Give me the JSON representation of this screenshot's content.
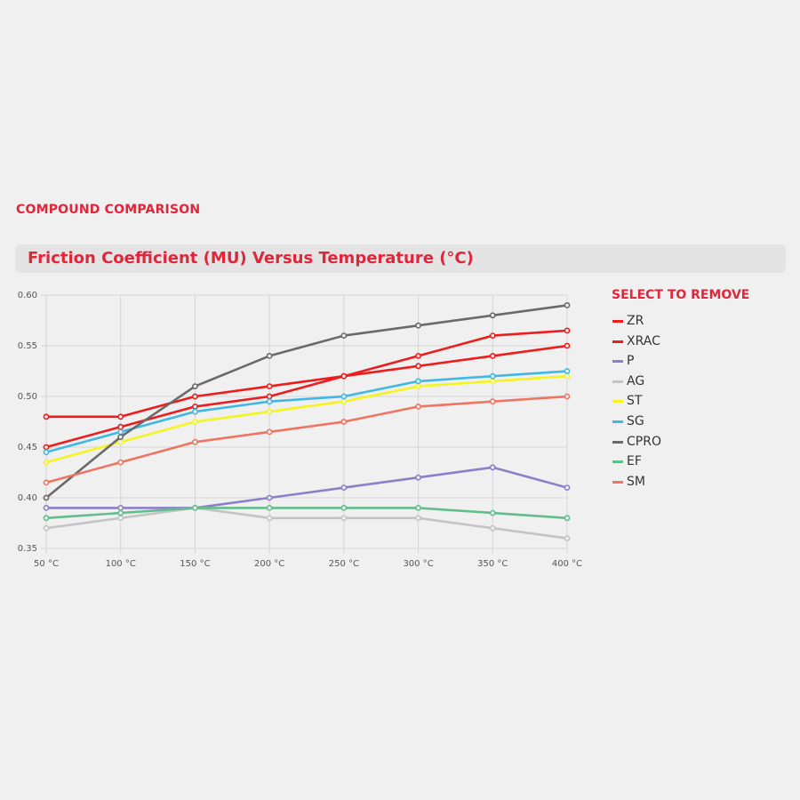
{
  "header": {
    "section_label": "COMPOUND COMPARISON",
    "chart_title": "Friction Coefficient (MU) Versus Temperature (°C)"
  },
  "legend": {
    "heading": "SELECT TO REMOVE"
  },
  "chart_data": {
    "type": "line",
    "title": "Friction Coefficient (MU) Versus Temperature (°C)",
    "xlabel": "",
    "ylabel": "",
    "x": [
      "50 °C",
      "100 °C",
      "150 °C",
      "200 °C",
      "250 °C",
      "300 °C",
      "350 °C",
      "400 °C"
    ],
    "ylim": [
      0.35,
      0.6
    ],
    "yticks": [
      "0.60",
      "0.55",
      "0.50",
      "0.45",
      "0.40",
      "0.35"
    ],
    "grid": true,
    "legend_position": "right",
    "series": [
      {
        "name": "ZR",
        "color": "#ee1c1c",
        "values": [
          0.45,
          0.47,
          0.49,
          0.5,
          0.52,
          0.54,
          0.56,
          0.565
        ]
      },
      {
        "name": "XRAC",
        "color": "#ee1c1c",
        "values": [
          0.48,
          0.48,
          0.5,
          0.51,
          0.52,
          0.53,
          0.54,
          0.55
        ]
      },
      {
        "name": "P",
        "color": "#8c7fc8",
        "values": [
          0.39,
          0.39,
          0.39,
          0.4,
          0.41,
          0.42,
          0.43,
          0.41
        ]
      },
      {
        "name": "AG",
        "color": "#c4c4c4",
        "values": [
          0.37,
          0.38,
          0.39,
          0.38,
          0.38,
          0.38,
          0.37,
          0.36
        ]
      },
      {
        "name": "ST",
        "color": "#f5f51e",
        "values": [
          0.435,
          0.455,
          0.475,
          0.485,
          0.495,
          0.51,
          0.515,
          0.52
        ]
      },
      {
        "name": "SG",
        "color": "#3fb8e8",
        "values": [
          0.445,
          0.465,
          0.485,
          0.495,
          0.5,
          0.515,
          0.52,
          0.525
        ]
      },
      {
        "name": "CPRO",
        "color": "#6a6a6a",
        "values": [
          0.4,
          0.46,
          0.51,
          0.54,
          0.56,
          0.57,
          0.58,
          0.59
        ]
      },
      {
        "name": "EF",
        "color": "#62bd8c",
        "values": [
          0.38,
          0.385,
          0.39,
          0.39,
          0.39,
          0.39,
          0.385,
          0.38
        ]
      },
      {
        "name": "SM",
        "color": "#ef7461",
        "values": [
          0.415,
          0.435,
          0.455,
          0.465,
          0.475,
          0.49,
          0.495,
          0.5
        ]
      }
    ]
  }
}
